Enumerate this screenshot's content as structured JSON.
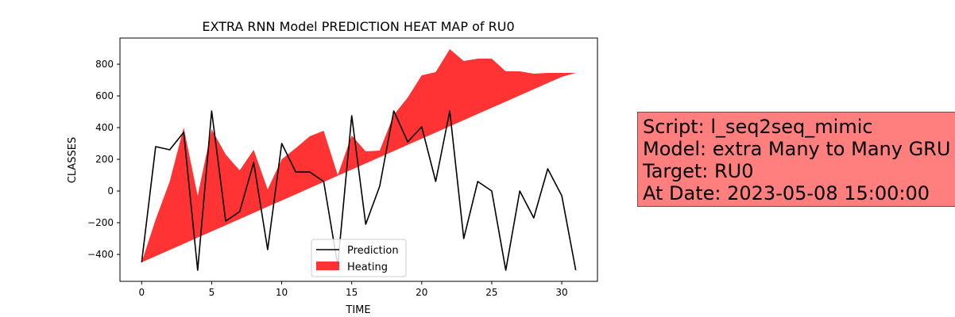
{
  "chart_data": {
    "type": "line",
    "title": "EXTRA RNN Model PREDICTION HEAT MAP of RU0",
    "xlabel": "TIME",
    "ylabel": "CLASSES",
    "xlim": [
      -1.55,
      32.55
    ],
    "ylim": [
      -570,
      965
    ],
    "xticks": [
      0,
      5,
      10,
      15,
      20,
      25,
      30
    ],
    "yticks": [
      -400,
      -200,
      0,
      200,
      400,
      600,
      800
    ],
    "x": [
      0,
      1,
      2,
      3,
      4,
      5,
      6,
      7,
      8,
      9,
      10,
      11,
      12,
      13,
      14,
      15,
      16,
      17,
      18,
      19,
      20,
      21,
      22,
      23,
      24,
      25,
      26,
      27,
      28,
      29,
      30,
      31
    ],
    "series": [
      {
        "name": "Prediction",
        "color": "#000000",
        "values": [
          -450,
          280,
          260,
          370,
          -500,
          505,
          -190,
          -130,
          180,
          -370,
          300,
          120,
          120,
          60,
          -470,
          475,
          -210,
          30,
          505,
          310,
          405,
          60,
          505,
          -300,
          60,
          0,
          -500,
          0,
          -170,
          140,
          -30,
          -500
        ]
      },
      {
        "name": "Heating",
        "type": "fill_between",
        "color": "#ff0000",
        "opacity": 0.8,
        "upper": [
          -450,
          -180,
          60,
          400,
          -30,
          390,
          230,
          130,
          260,
          10,
          200,
          270,
          345,
          380,
          100,
          350,
          250,
          255,
          480,
          590,
          730,
          750,
          895,
          820,
          835,
          835,
          755,
          755,
          740,
          745,
          745,
          745
        ],
        "lower": [
          -450,
          -411,
          -372,
          -333,
          -294,
          -255,
          -216,
          -177,
          -138,
          -99,
          -60,
          -21,
          18,
          57,
          96,
          135,
          174,
          213,
          252,
          291,
          330,
          369,
          408,
          447,
          486,
          525,
          564,
          603,
          642,
          681,
          720,
          745
        ]
      }
    ],
    "legend": {
      "placement": "lower center",
      "entries": [
        "Prediction",
        "Heating"
      ]
    },
    "grid": false
  },
  "info_box": {
    "lines": [
      "Script: l_seq2seq_mimic",
      "Model: extra Many to Many GRU",
      "Target: RU0",
      "At Date: 2023-05-08 15:00:00"
    ],
    "background": "#ff7f7f"
  }
}
